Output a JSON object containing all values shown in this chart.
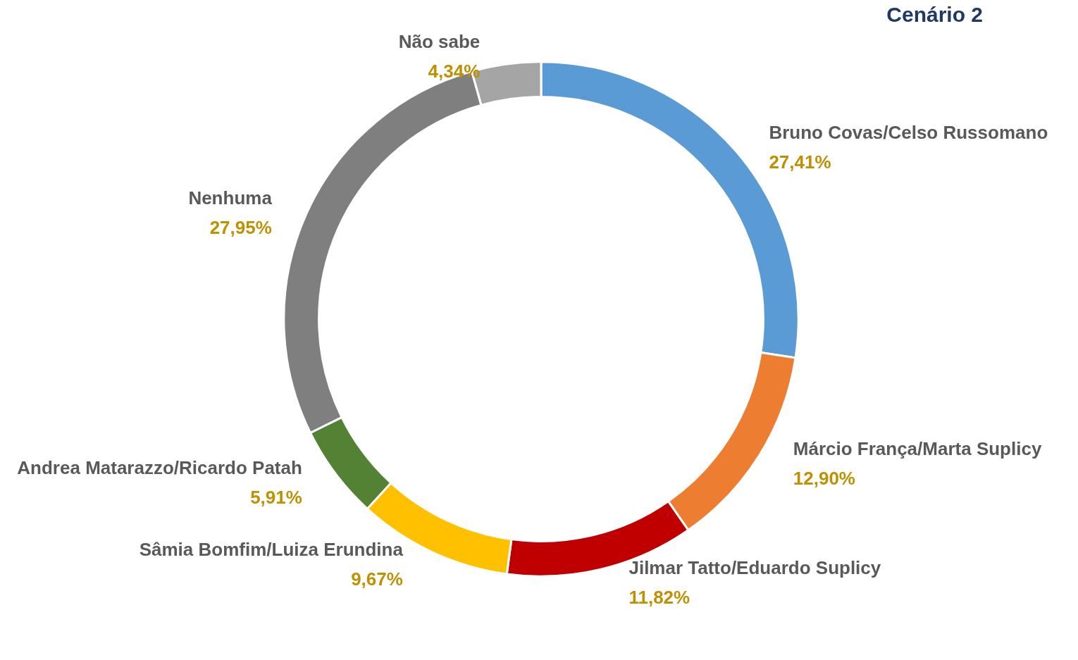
{
  "chart_data": {
    "type": "donut",
    "title": "Cenário 2",
    "categories": [
      "Bruno Covas/Celso Russomano",
      "Márcio França/Marta Suplicy",
      "Jilmar Tatto/Eduardo Suplicy",
      "Sâmia Bomfim/Luiza Erundina",
      "Andrea Matarazzo/Ricardo Patah",
      "Nenhuma",
      "Não sabe"
    ],
    "values": [
      27.41,
      12.9,
      11.82,
      9.67,
      5.91,
      27.95,
      4.34
    ],
    "colors": [
      "#5b9bd5",
      "#ed7d31",
      "#c00000",
      "#ffc000",
      "#548235",
      "#7f7f7f",
      "#a5a5a5"
    ],
    "value_labels": [
      "27,41%",
      "12,90%",
      "11,82%",
      "9,67%",
      "5,91%",
      "27,95%",
      "4,34%"
    ],
    "legend": false
  }
}
